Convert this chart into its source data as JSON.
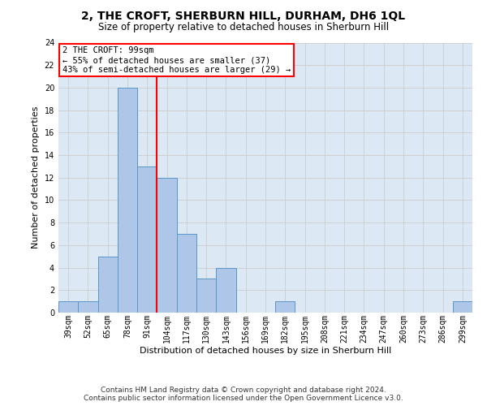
{
  "title": "2, THE CROFT, SHERBURN HILL, DURHAM, DH6 1QL",
  "subtitle": "Size of property relative to detached houses in Sherburn Hill",
  "xlabel": "Distribution of detached houses by size in Sherburn Hill",
  "ylabel": "Number of detached properties",
  "bin_labels": [
    "39sqm",
    "52sqm",
    "65sqm",
    "78sqm",
    "91sqm",
    "104sqm",
    "117sqm",
    "130sqm",
    "143sqm",
    "156sqm",
    "169sqm",
    "182sqm",
    "195sqm",
    "208sqm",
    "221sqm",
    "234sqm",
    "247sqm",
    "260sqm",
    "273sqm",
    "286sqm",
    "299sqm"
  ],
  "bar_values": [
    1,
    1,
    5,
    20,
    13,
    12,
    7,
    3,
    4,
    0,
    0,
    1,
    0,
    0,
    0,
    0,
    0,
    0,
    0,
    0,
    1
  ],
  "bar_color": "#aec6e8",
  "bar_edgecolor": "#5a96c8",
  "property_line_x": 4.5,
  "annotation_text": "2 THE CROFT: 99sqm\n← 55% of detached houses are smaller (37)\n43% of semi-detached houses are larger (29) →",
  "annotation_box_color": "white",
  "annotation_box_edgecolor": "red",
  "vline_color": "red",
  "ylim": [
    0,
    24
  ],
  "yticks": [
    0,
    2,
    4,
    6,
    8,
    10,
    12,
    14,
    16,
    18,
    20,
    22,
    24
  ],
  "grid_color": "#cccccc",
  "bg_color": "#dde8f5",
  "footer_line1": "Contains HM Land Registry data © Crown copyright and database right 2024.",
  "footer_line2": "Contains public sector information licensed under the Open Government Licence v3.0.",
  "title_fontsize": 10,
  "subtitle_fontsize": 8.5,
  "xlabel_fontsize": 8,
  "ylabel_fontsize": 8,
  "tick_fontsize": 7,
  "annotation_fontsize": 7.5,
  "footer_fontsize": 6.5
}
